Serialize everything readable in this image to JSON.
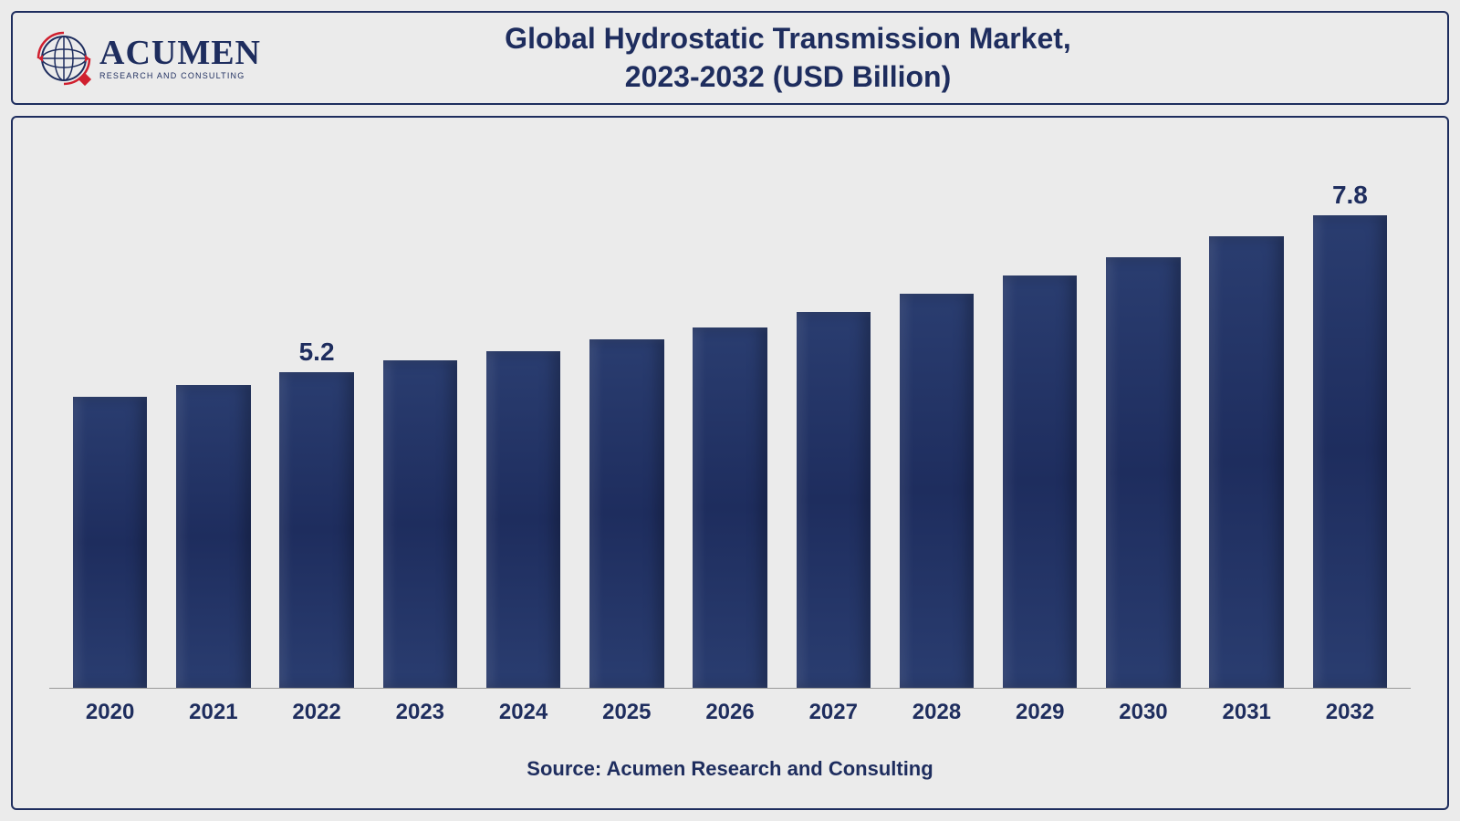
{
  "logo": {
    "name": "ACUMEN",
    "tagline": "RESEARCH AND CONSULTING",
    "globe_color": "#1e2d5e",
    "accent_color": "#d01f2e"
  },
  "title": {
    "line1": "Global Hydrostatic Transmission Market,",
    "line2": "2023-2032 (USD Billion)",
    "color": "#1e2d5e",
    "fontsize": 32
  },
  "chart": {
    "type": "bar",
    "categories": [
      "2020",
      "2021",
      "2022",
      "2023",
      "2024",
      "2025",
      "2026",
      "2027",
      "2028",
      "2029",
      "2030",
      "2031",
      "2032"
    ],
    "values": [
      4.8,
      5.0,
      5.2,
      5.4,
      5.55,
      5.75,
      5.95,
      6.2,
      6.5,
      6.8,
      7.1,
      7.45,
      7.8
    ],
    "value_labels": [
      "",
      "",
      "5.2",
      "",
      "",
      "",
      "",
      "",
      "",
      "",
      "",
      "",
      "7.8"
    ],
    "ylim": [
      0,
      8.5
    ],
    "bar_color_top": "#2a3d70",
    "bar_color_mid": "#1e2d5e",
    "bar_width_pct": 72,
    "axis_color": "#999999",
    "label_fontsize": 24,
    "value_label_fontsize": 28,
    "label_color": "#1e2d5e",
    "background_color": "#ebebeb",
    "border_color": "#1e2d5e"
  },
  "source": {
    "text": "Source: Acumen Research and Consulting",
    "fontsize": 22,
    "color": "#1e2d5e"
  }
}
